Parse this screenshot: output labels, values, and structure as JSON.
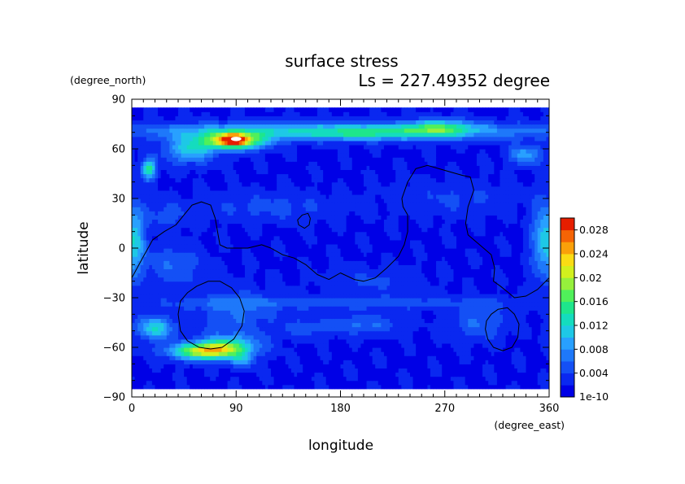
{
  "chart_data": {
    "type": "heatmap",
    "title": "surface stress",
    "subtitle": "Ls = 227.49352 degree",
    "xlabel": "longitude",
    "ylabel": "latitude",
    "x_unit": "(degree_east)",
    "y_unit": "(degree_north)",
    "xlim": [
      0,
      360
    ],
    "ylim": [
      -90,
      90
    ],
    "x_ticks": [
      0,
      90,
      180,
      270,
      360
    ],
    "y_ticks": [
      -90,
      -60,
      -30,
      0,
      30,
      60,
      90
    ],
    "x_tick_labels": [
      "0",
      "90",
      "180",
      "270",
      "360"
    ],
    "y_tick_labels": [
      "−90",
      "−60",
      "−30",
      "0",
      "30",
      "60",
      "90"
    ],
    "lat_data_range": [
      -85,
      85
    ],
    "colorbar": {
      "min_label": "1e-10",
      "labels": [
        "0.004",
        "0.008",
        "0.012",
        "0.016",
        "0.02",
        "0.024",
        "0.028"
      ],
      "label_values": [
        0.004,
        0.008,
        0.012,
        0.016,
        0.02,
        0.024,
        0.028
      ],
      "min": 0,
      "max": 0.03,
      "levels": 15,
      "colors": [
        "#0000e6",
        "#0a28f0",
        "#1450f5",
        "#1e78fa",
        "#28a0ff",
        "#1ec8e6",
        "#14dcbe",
        "#1ee68c",
        "#50f05a",
        "#96f03c",
        "#d2f01e",
        "#fadc14",
        "#faa00a",
        "#f56405",
        "#e61e00"
      ]
    },
    "field_max_color": "#ffffff",
    "field": {
      "background": 0.0018,
      "blobs": [
        {
          "lon": 180,
          "lat": 71,
          "rlon": 175,
          "rlat": 5,
          "v": 0.0105
        },
        {
          "lon": 200,
          "lat": 69,
          "rlon": 45,
          "rlat": 4,
          "v": 0.004
        },
        {
          "lon": 88,
          "lat": 65,
          "rlon": 26,
          "rlat": 5,
          "v": 0.022
        },
        {
          "lon": 88,
          "lat": 66,
          "rlon": 9,
          "rlat": 2.5,
          "v": 0.014
        },
        {
          "lon": 50,
          "lat": 60,
          "rlon": 22,
          "rlat": 8,
          "v": 0.009
        },
        {
          "lon": 265,
          "lat": 73,
          "rlon": 28,
          "rlat": 5,
          "v": 0.009
        },
        {
          "lon": 15,
          "lat": 48,
          "rlon": 6,
          "rlat": 6,
          "v": 0.013
        },
        {
          "lon": 340,
          "lat": 57,
          "rlon": 15,
          "rlat": 6,
          "v": 0.007
        },
        {
          "lon": 355,
          "lat": 5,
          "rlon": 10,
          "rlat": 22,
          "v": 0.008
        },
        {
          "lon": 5,
          "lat": 5,
          "rlon": 8,
          "rlat": 20,
          "v": 0.0055
        },
        {
          "lon": 65,
          "lat": -62,
          "rlon": 30,
          "rlat": 5,
          "v": 0.02
        },
        {
          "lon": 20,
          "lat": -48,
          "rlon": 16,
          "rlat": 7,
          "v": 0.01
        },
        {
          "lon": 85,
          "lat": -58,
          "rlon": 25,
          "rlat": 6,
          "v": 0.008
        },
        {
          "lon": 95,
          "lat": -68,
          "rlon": 10,
          "rlat": 4,
          "v": 0.006
        },
        {
          "lon": 180,
          "lat": -33,
          "rlon": 175,
          "rlat": 4,
          "v": 0.0035
        },
        {
          "lon": 90,
          "lat": -40,
          "rlon": 35,
          "rlat": 15,
          "v": 0.004
        },
        {
          "lon": 35,
          "lat": -10,
          "rlon": 25,
          "rlat": 12,
          "v": 0.004
        },
        {
          "lon": 200,
          "lat": -46,
          "rlon": 30,
          "rlat": 6,
          "v": 0.0045
        },
        {
          "lon": 300,
          "lat": -45,
          "rlon": 22,
          "rlat": 10,
          "v": 0.0045
        },
        {
          "lon": 150,
          "lat": -48,
          "rlon": 20,
          "rlat": 5,
          "v": 0.0035
        },
        {
          "lon": 120,
          "lat": 25,
          "rlon": 60,
          "rlat": 8,
          "v": 0.003
        },
        {
          "lon": 280,
          "lat": 30,
          "rlon": 50,
          "rlat": 10,
          "v": 0.0025
        },
        {
          "lon": 30,
          "lat": 20,
          "rlon": 20,
          "rlat": 8,
          "v": 0.003
        },
        {
          "lon": 210,
          "lat": -20,
          "rlon": 40,
          "rlat": 8,
          "v": 0.0025
        }
      ],
      "hotspot": {
        "lon": 90,
        "lat": 66,
        "rlon": 4.5,
        "rlat": 1.3
      }
    },
    "contours": [
      {
        "name": "",
        "closed": false,
        "points": [
          [
            0,
            -18
          ],
          [
            10,
            -5
          ],
          [
            18,
            5
          ],
          [
            28,
            10
          ],
          [
            38,
            14
          ],
          [
            45,
            20
          ],
          [
            52,
            26
          ],
          [
            60,
            28
          ],
          [
            68,
            26
          ],
          [
            72,
            18
          ],
          [
            74,
            10
          ],
          [
            76,
            2
          ],
          [
            82,
            0
          ],
          [
            100,
            0
          ],
          [
            112,
            2
          ],
          [
            120,
            0
          ],
          [
            130,
            -4
          ],
          [
            140,
            -6
          ],
          [
            150,
            -10
          ],
          [
            160,
            -16
          ],
          [
            170,
            -19
          ],
          [
            180,
            -15
          ],
          [
            192,
            -19
          ],
          [
            200,
            -20
          ],
          [
            210,
            -18
          ],
          [
            220,
            -12
          ],
          [
            230,
            -5
          ],
          [
            235,
            2
          ],
          [
            238,
            10
          ],
          [
            238,
            20
          ],
          [
            234,
            25
          ],
          [
            233,
            30
          ],
          [
            238,
            40
          ],
          [
            245,
            48
          ],
          [
            255,
            50
          ],
          [
            265,
            48
          ],
          [
            275,
            46
          ],
          [
            285,
            44
          ],
          [
            292,
            43
          ],
          [
            295,
            35
          ],
          [
            290,
            25
          ],
          [
            288,
            15
          ],
          [
            290,
            8
          ],
          [
            300,
            2
          ],
          [
            310,
            -4
          ],
          [
            313,
            -12
          ],
          [
            312,
            -20
          ],
          [
            318,
            -23
          ],
          [
            325,
            -27
          ],
          [
            330,
            -30
          ],
          [
            340,
            -29
          ],
          [
            350,
            -25
          ],
          [
            360,
            -18
          ]
        ]
      },
      {
        "name": "",
        "closed": true,
        "points": [
          [
            143,
            17
          ],
          [
            147,
            20
          ],
          [
            152,
            21
          ],
          [
            154,
            18
          ],
          [
            153,
            14
          ],
          [
            149,
            12
          ],
          [
            144,
            14
          ]
        ]
      },
      {
        "name": "",
        "closed": true,
        "points": [
          [
            42,
            -32
          ],
          [
            48,
            -27
          ],
          [
            56,
            -23
          ],
          [
            66,
            -20
          ],
          [
            76,
            -20
          ],
          [
            86,
            -24
          ],
          [
            93,
            -30
          ],
          [
            97,
            -38
          ],
          [
            95,
            -47
          ],
          [
            88,
            -55
          ],
          [
            78,
            -60
          ],
          [
            68,
            -61
          ],
          [
            58,
            -60
          ],
          [
            48,
            -56
          ],
          [
            42,
            -50
          ],
          [
            40,
            -40
          ]
        ]
      },
      {
        "name": "",
        "closed": true,
        "points": [
          [
            306,
            -44
          ],
          [
            310,
            -40
          ],
          [
            316,
            -37
          ],
          [
            324,
            -36
          ],
          [
            330,
            -40
          ],
          [
            334,
            -46
          ],
          [
            333,
            -54
          ],
          [
            328,
            -60
          ],
          [
            320,
            -62
          ],
          [
            312,
            -60
          ],
          [
            307,
            -55
          ],
          [
            305,
            -49
          ]
        ]
      }
    ]
  }
}
